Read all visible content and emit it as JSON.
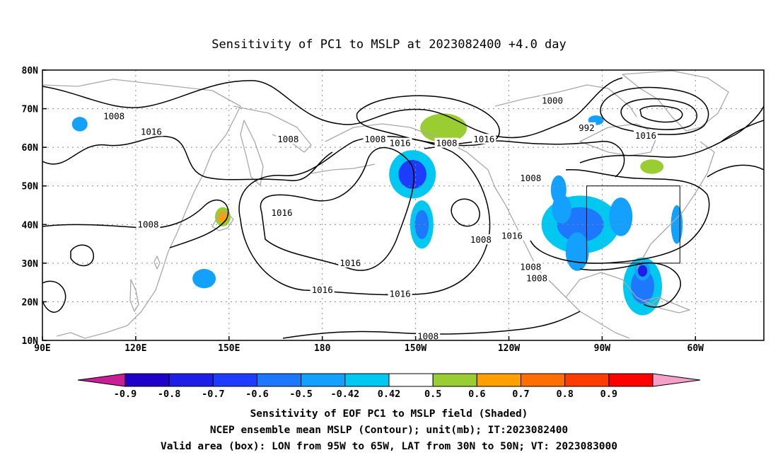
{
  "title": "Sensitivity of PC1 to MSLP at 2023082400 +4.0 day",
  "lat_ticks": [
    "80N",
    "70N",
    "60N",
    "50N",
    "40N",
    "30N",
    "20N",
    "10N"
  ],
  "lon_ticks": [
    "90E",
    "120E",
    "150E",
    "180",
    "150W",
    "120W",
    "90W",
    "60W"
  ],
  "contours": {
    "levels": [
      992,
      1000,
      1008,
      1016
    ],
    "labels": [
      {
        "text": "1008",
        "lon": 113,
        "lat": 68
      },
      {
        "text": "1016",
        "lon": 125,
        "lat": 64
      },
      {
        "text": "1008",
        "lon": 124,
        "lat": 40
      },
      {
        "text": "1016",
        "lon": 167,
        "lat": 43
      },
      {
        "text": "1008",
        "lon": 169,
        "lat": 62
      },
      {
        "text": "1008",
        "lon": 197,
        "lat": 62
      },
      {
        "text": "1016",
        "lon": 205,
        "lat": 61
      },
      {
        "text": "1008",
        "lon": 220,
        "lat": 61
      },
      {
        "text": "1016",
        "lon": 232,
        "lat": 62
      },
      {
        "text": "1008",
        "lon": 247,
        "lat": 52
      },
      {
        "text": "1000",
        "lon": 254,
        "lat": 72
      },
      {
        "text": "992",
        "lon": 265,
        "lat": 65
      },
      {
        "text": "1016",
        "lon": 284,
        "lat": 63
      },
      {
        "text": "1016",
        "lon": 189,
        "lat": 30
      },
      {
        "text": "1016",
        "lon": 180,
        "lat": 23
      },
      {
        "text": "1016",
        "lon": 205,
        "lat": 22
      },
      {
        "text": "1008",
        "lon": 231,
        "lat": 36
      },
      {
        "text": "1016",
        "lon": 241,
        "lat": 37
      },
      {
        "text": "1008",
        "lon": 247,
        "lat": 29
      },
      {
        "text": "1008",
        "lon": 249,
        "lat": 26
      },
      {
        "text": "1008",
        "lon": 214,
        "lat": 11
      }
    ]
  },
  "sensitivity_patches": [
    {
      "lon": 209,
      "lat": 53,
      "rx": 6,
      "ry": 5,
      "value": -0.65
    },
    {
      "lon": 212,
      "lat": 40,
      "rx": 3,
      "ry": 5,
      "value": -0.55
    },
    {
      "lon": 102,
      "lat": 66,
      "rx": 2,
      "ry": 1.5,
      "value": -0.45
    },
    {
      "lon": 148,
      "lat": 42,
      "rx": 2,
      "ry": 2,
      "value": 0.6
    },
    {
      "lon": 142,
      "lat": 26,
      "rx": 3,
      "ry": 2,
      "value": -0.5
    },
    {
      "lon": 219,
      "lat": 65,
      "rx": 6,
      "ry": 3,
      "value": 0.55
    },
    {
      "lon": 263,
      "lat": 40,
      "rx": 10,
      "ry": 6,
      "value": -0.6
    },
    {
      "lon": 257,
      "lat": 44,
      "rx": 2.5,
      "ry": 3,
      "value": -0.5
    },
    {
      "lon": 262,
      "lat": 33,
      "rx": 3,
      "ry": 4,
      "value": -0.5
    },
    {
      "lon": 283,
      "lat": 24,
      "rx": 5,
      "ry": 6,
      "value": -0.6
    },
    {
      "lon": 283,
      "lat": 28,
      "rx": 2,
      "ry": 2,
      "value": -0.8
    },
    {
      "lon": 286,
      "lat": 55,
      "rx": 3,
      "ry": 1.5,
      "value": 0.5
    },
    {
      "lon": 276,
      "lat": 42,
      "rx": 3,
      "ry": 4,
      "value": -0.45
    },
    {
      "lon": 256,
      "lat": 49,
      "rx": 2,
      "ry": 3,
      "value": -0.5
    },
    {
      "lon": 294,
      "lat": 40,
      "rx": 1.5,
      "ry": 4,
      "value": -0.5
    },
    {
      "lon": 268,
      "lat": 67,
      "rx": 2,
      "ry": 1,
      "value": -0.45
    }
  ],
  "valid_box": {
    "lon_min": 265,
    "lon_max": 295,
    "lat_min": 30,
    "lat_max": 50
  },
  "colorbar": {
    "labels": [
      "-0.9",
      "-0.8",
      "-0.7",
      "-0.6",
      "-0.5",
      "-0.42",
      "0.42",
      "0.5",
      "0.6",
      "0.7",
      "0.8",
      "0.9"
    ],
    "colors": [
      "#c81e96",
      "#1e00c8",
      "#1e1ee6",
      "#1e3cff",
      "#1e78ff",
      "#14a0ff",
      "#00c8f0",
      "#ffffff",
      "#9acd32",
      "#ff9f00",
      "#ff6e00",
      "#ff3c00",
      "#ff0000",
      "#f5a0c8"
    ]
  },
  "footer": [
    "Sensitivity of EOF PC1 to MSLP field (Shaded)",
    "NCEP ensemble mean MSLP (Contour); unit(mb); IT:2023082400",
    "Valid area (box): LON from 95W to 65W, LAT from 30N to 50N; VT: 2023083000"
  ]
}
